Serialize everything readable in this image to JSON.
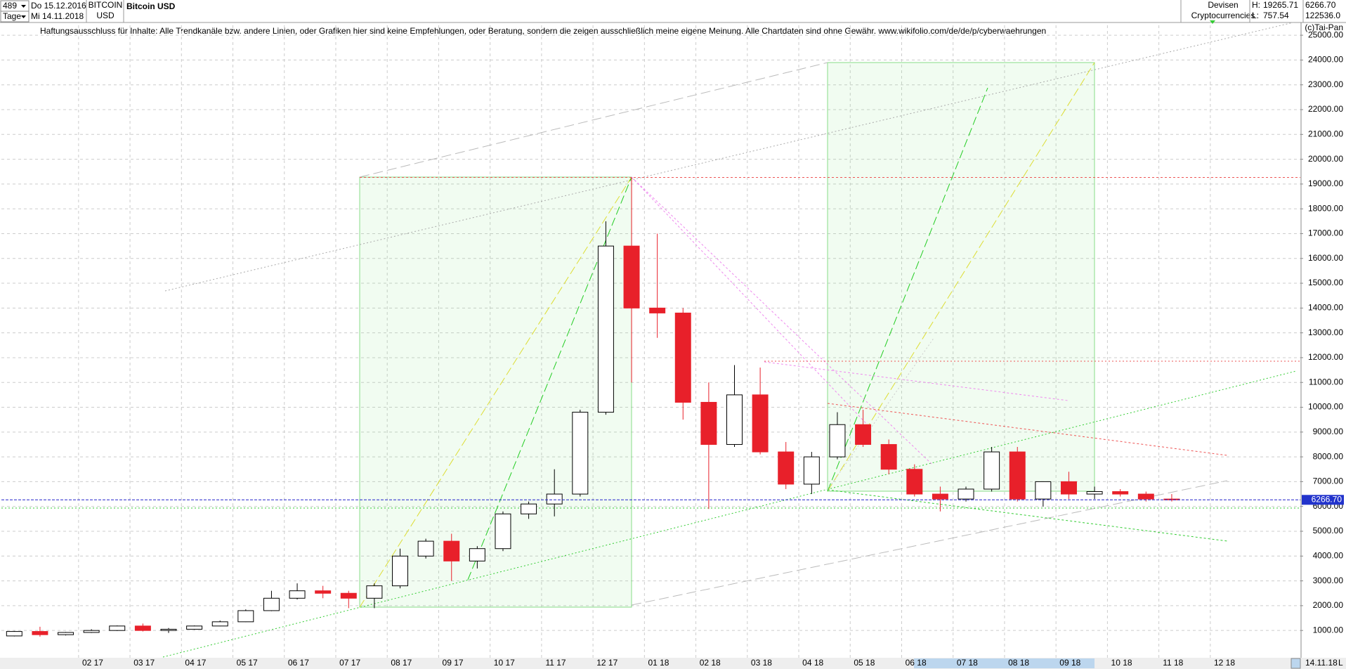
{
  "header": {
    "count": "489",
    "start": "Do 15.12.2016",
    "period": "Tage",
    "end": "Mi 14.11.2018",
    "symbol": "BITCOIN",
    "currency": "USD",
    "name": "Bitcoin USD",
    "group": "Devisen",
    "subgroup": "Cryptocurrencies",
    "high_label": "H:",
    "high": 19265.71,
    "low_label": "L:",
    "low": 757.54,
    "volume": "122536.0",
    "disclaimer": "Haftungsausschluss für Inhalte: Alle Trendkanäle bzw. andere Linien, oder Grafiken hier sind keine Empfehlungen, oder Beratung, sondern die zeigen ausschließlich meine eigene Meinung. Alle Chartdaten sind ohne Gewähr.  www.wikifolio.com/de/de/p/cyberwaehrungen",
    "copyright": "(c)Tai-Pan",
    "footer_date": "14.11.18",
    "footer_mode": "L"
  },
  "chart_data": {
    "type": "candlestick",
    "last": {
      "value": 6266.7,
      "label": "6266.70"
    },
    "categories": [
      null,
      null,
      null,
      "02 17",
      null,
      "03 17",
      null,
      "04 17",
      null,
      "05 17",
      null,
      "06 17",
      null,
      "07 17",
      null,
      "08 17",
      null,
      "09 17",
      null,
      "10 17",
      null,
      "11 17",
      null,
      "12 17",
      null,
      "01 18",
      null,
      "02 18",
      null,
      "03 18",
      null,
      "04 18",
      null,
      "05 18",
      null,
      "06 18",
      null,
      "07 18",
      null,
      "08 18",
      null,
      "09 18",
      null,
      "10 18",
      null,
      "11 18",
      null,
      "12 18"
    ],
    "open": [
      780,
      960,
      830,
      920,
      1000,
      1180,
      1000,
      1050,
      1180,
      1350,
      1800,
      2300,
      2600,
      2500,
      2300,
      2800,
      4000,
      4600,
      3800,
      4300,
      5700,
      6100,
      6500,
      9800,
      16500,
      14000,
      13800,
      10200,
      8500,
      10500,
      8200,
      6900,
      8000,
      9300,
      8500,
      7500,
      6500,
      6300,
      6700,
      8200,
      6300,
      7000,
      6500,
      6600,
      6500,
      6300,
      null,
      null
    ],
    "high": [
      980,
      1150,
      940,
      1050,
      1200,
      1280,
      1100,
      1200,
      1400,
      1850,
      2600,
      2900,
      2800,
      2600,
      2900,
      4300,
      4700,
      4900,
      4400,
      5800,
      6200,
      7500,
      9900,
      17500,
      19265.71,
      17000,
      14000,
      11000,
      11700,
      11600,
      8600,
      8200,
      9800,
      9900,
      8700,
      7700,
      6800,
      6800,
      8400,
      8400,
      7000,
      7400,
      6800,
      6700,
      6600,
      6500,
      null,
      null
    ],
    "low": [
      760,
      750,
      800,
      900,
      980,
      960,
      900,
      1030,
      1170,
      1340,
      1780,
      2250,
      2300,
      1900,
      1900,
      2700,
      3900,
      3000,
      3500,
      4200,
      5500,
      5600,
      6400,
      9700,
      11000,
      12800,
      9500,
      5900,
      8400,
      8100,
      6700,
      6500,
      7900,
      8400,
      7300,
      6400,
      5800,
      6200,
      6600,
      6200,
      6000,
      6300,
      6300,
      6400,
      6200,
      6200,
      null,
      null
    ],
    "close": [
      960,
      830,
      920,
      1000,
      1180,
      1000,
      1050,
      1180,
      1350,
      1800,
      2300,
      2600,
      2500,
      2300,
      2800,
      4000,
      4600,
      3800,
      4300,
      5700,
      6100,
      6500,
      9800,
      16500,
      14000,
      13800,
      10200,
      8500,
      10500,
      8200,
      6900,
      8000,
      9300,
      8500,
      7500,
      6500,
      6300,
      6700,
      8200,
      6300,
      7000,
      6500,
      6600,
      6500,
      6300,
      6266.7,
      null,
      null
    ],
    "up_color": "#ffffff",
    "down_color": "#e8202a",
    "ylim": [
      -100,
      25400
    ],
    "yticks": [
      {
        "value": 1000,
        "label": "1000.00"
      },
      {
        "value": 2000,
        "label": "2000.00"
      },
      {
        "value": 3000,
        "label": "3000.00"
      },
      {
        "value": 4000,
        "label": "4000.00"
      },
      {
        "value": 5000,
        "label": "5000.00"
      },
      {
        "value": 6000,
        "label": "6000.00"
      },
      {
        "value": 7000,
        "label": "7000.00"
      },
      {
        "value": 8000,
        "label": "8000.00"
      },
      {
        "value": 9000,
        "label": "9000.00"
      },
      {
        "value": 10000,
        "label": "10000.00"
      },
      {
        "value": 11000,
        "label": "11000.00"
      },
      {
        "value": 12000,
        "label": "12000.00"
      },
      {
        "value": 13000,
        "label": "13000.00"
      },
      {
        "value": 14000,
        "label": "14000.00"
      },
      {
        "value": 15000,
        "label": "15000.00"
      },
      {
        "value": 16000,
        "label": "16000.00"
      },
      {
        "value": 17000,
        "label": "17000.00"
      },
      {
        "value": 18000,
        "label": "18000.00"
      },
      {
        "value": 19000,
        "label": "19000.00"
      },
      {
        "value": 20000,
        "label": "20000.00"
      },
      {
        "value": 21000,
        "label": "21000.00"
      },
      {
        "value": 22000,
        "label": "22000.00"
      },
      {
        "value": 23000,
        "label": "23000.00"
      },
      {
        "value": 24000,
        "label": "24000.00"
      },
      {
        "value": 25000,
        "label": "25000.00"
      }
    ],
    "grid": true
  }
}
